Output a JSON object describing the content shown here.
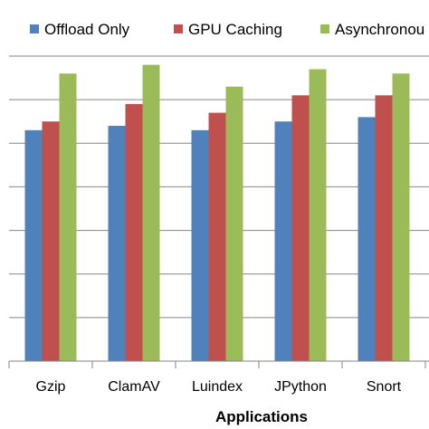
{
  "chart_data": {
    "type": "bar",
    "categories": [
      "Gzip",
      "ClamAV",
      "Luindex",
      "JPython",
      "Snort"
    ],
    "series": [
      {
        "name": "Offload Only",
        "color": "#4F81BD",
        "values": [
          0.53,
          0.54,
          0.53,
          0.55,
          0.56
        ]
      },
      {
        "name": "GPU Caching",
        "color": "#C0504D",
        "values": [
          0.55,
          0.59,
          0.57,
          0.61,
          0.61
        ]
      },
      {
        "name": "Asynchronou",
        "color": "#9BBB59",
        "values": [
          0.66,
          0.68,
          0.63,
          0.67,
          0.66
        ]
      }
    ],
    "xlabel": "Applications",
    "ylabel": "",
    "ylim": [
      0,
      0.7
    ],
    "gridlines": true,
    "legend_position": "top"
  }
}
